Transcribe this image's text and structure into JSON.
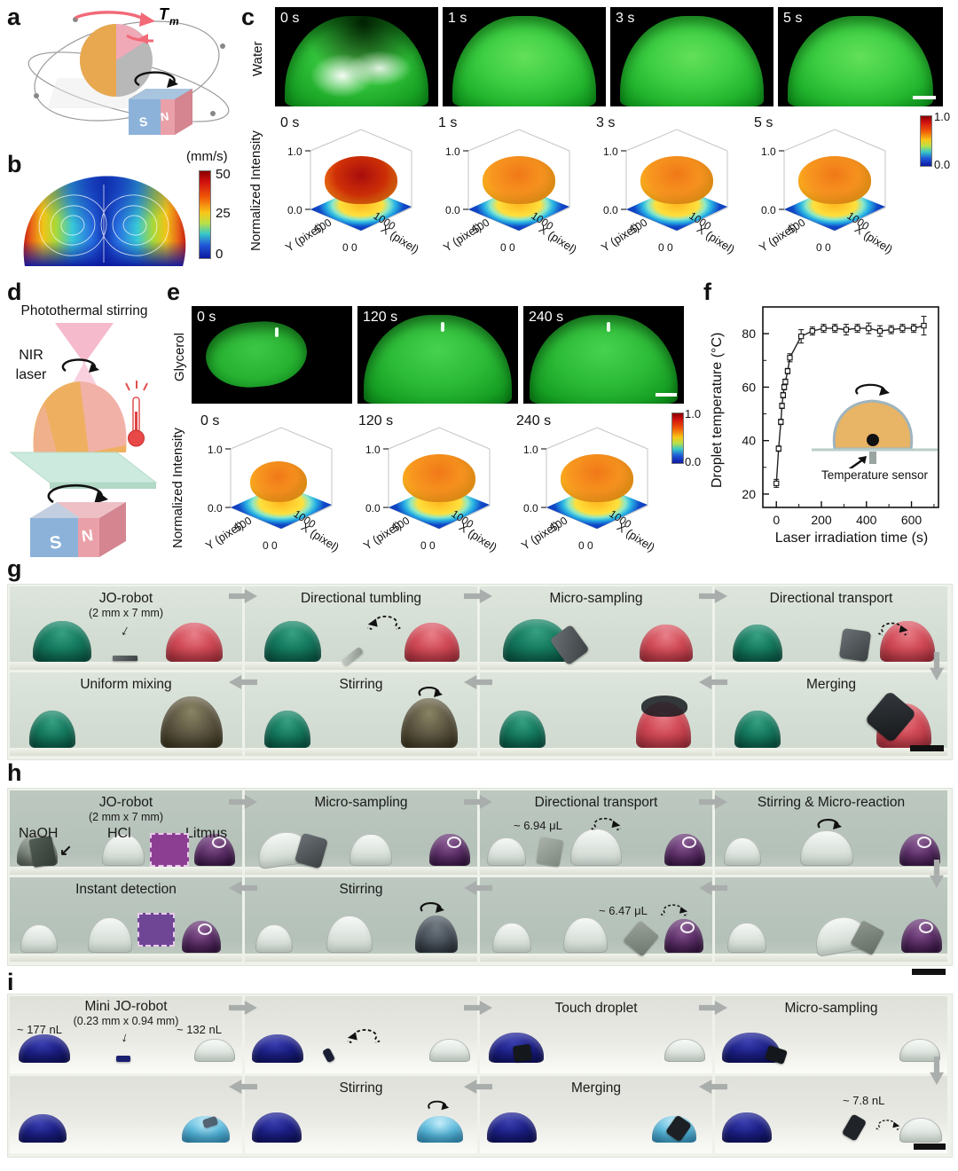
{
  "panels": {
    "a": {
      "label": "a",
      "torque_main": "T",
      "torque_sub": "m",
      "magnet_south": "S",
      "magnet_north": "N"
    },
    "b": {
      "label": "b",
      "colorbar_title": "(mm/s)",
      "colorbar_ticks": [
        "50",
        "25",
        "0"
      ]
    },
    "c": {
      "label": "c",
      "sample": "Water",
      "frame_times": [
        "0 s",
        "1 s",
        "3 s",
        "5 s"
      ],
      "plot_times": [
        "0 s",
        "1 s",
        "3 s",
        "5 s"
      ],
      "ylabel": "Normalized Intensity",
      "z_hi": "1.0",
      "z_lo": "0.0",
      "y_tick": "500",
      "origin_tick": "0 0",
      "x_tick": "1000",
      "y_axis": "Y (pixel)",
      "x_axis": "X (pixel)",
      "colorbar_hi": "1.0",
      "colorbar_lo": "0.0"
    },
    "d": {
      "label": "d",
      "title": "Photothermal stirring",
      "laser_label_1": "NIR",
      "laser_label_2": "laser",
      "magnet_south": "S",
      "magnet_north": "N"
    },
    "e": {
      "label": "e",
      "sample": "Glycerol",
      "frame_times": [
        "0 s",
        "120 s",
        "240 s"
      ],
      "plot_times": [
        "0 s",
        "120 s",
        "240 s"
      ],
      "ylabel": "Normalized Intensity",
      "z_hi": "1.0",
      "z_lo": "0.0",
      "y_tick": "500",
      "origin_tick": "0 0",
      "x_tick": "1000",
      "y_axis": "Y (pixel)",
      "x_axis": "X (pixel)",
      "colorbar_hi": "1.0",
      "colorbar_lo": "0.0"
    },
    "f": {
      "label": "f",
      "inset_label": "Temperature sensor"
    },
    "g": {
      "label": "g",
      "row1": [
        {
          "label": "JO-robot",
          "sublabel": "(2 mm x 7 mm)"
        },
        {
          "label": "Directional tumbling"
        },
        {
          "label": "Micro-sampling"
        },
        {
          "label": "Directional transport"
        }
      ],
      "row2": [
        {
          "label": "Uniform mixing"
        },
        {
          "label": "Stirring"
        },
        {
          "label": ""
        },
        {
          "label": "Merging"
        }
      ]
    },
    "h": {
      "label": "h",
      "row1": [
        {
          "label": "JO-robot",
          "sublabel": "(2 mm x 7 mm)",
          "chem": [
            "NaOH",
            "HCl",
            "Litmus"
          ]
        },
        {
          "label": "Micro-sampling"
        },
        {
          "label": "Directional transport",
          "annotation": "~ 6.94 μL"
        },
        {
          "label": "Stirring & Micro-reaction"
        }
      ],
      "row2": [
        {
          "label": "Instant detection"
        },
        {
          "label": "Stirring"
        },
        {
          "label": "",
          "annotation": "~ 6.47 μL"
        },
        {
          "label": ""
        }
      ]
    },
    "i": {
      "label": "i",
      "row1": [
        {
          "label": "Mini JO-robot",
          "sublabel": "(0.23 mm x 0.94 mm)",
          "left_volume": "~ 177 nL",
          "right_volume": "~ 132 nL"
        },
        {
          "label": ""
        },
        {
          "label": "Touch droplet"
        },
        {
          "label": "Micro-sampling"
        }
      ],
      "row2": [
        {
          "label": ""
        },
        {
          "label": "Stirring"
        },
        {
          "label": "Merging"
        },
        {
          "label": "",
          "annotation": "~ 7.8 nL"
        }
      ]
    }
  },
  "chart_data": [
    {
      "type": "line",
      "xlabel": "Laser irradiation time (s)",
      "ylabel": "Droplet temperature (°C)",
      "x": [
        0,
        10,
        20,
        25,
        30,
        35,
        40,
        50,
        60,
        110,
        160,
        210,
        260,
        310,
        360,
        410,
        460,
        510,
        560,
        610,
        655
      ],
      "y": [
        24,
        37,
        47,
        53,
        57,
        60,
        62,
        66,
        71,
        79,
        81,
        82,
        82,
        81.5,
        82,
        82,
        81,
        81.5,
        82,
        82,
        83
      ],
      "yerr": [
        1.5,
        1,
        1,
        1,
        1,
        1,
        1,
        1,
        1.5,
        2.5,
        1.5,
        1.5,
        1.5,
        2,
        1.5,
        2,
        2,
        1.5,
        1.5,
        1.5,
        3.5
      ],
      "xticks": [
        0,
        200,
        400,
        600
      ],
      "yticks": [
        20,
        40,
        60,
        80
      ],
      "xlim": [
        -60,
        720
      ],
      "ylim": [
        15,
        90
      ],
      "grid": false,
      "marker": "open-square",
      "legend": null
    },
    {
      "type": "heatmap",
      "role": "velocity-field",
      "legend_title": "(mm/s)",
      "range": [
        0,
        50
      ],
      "colorbar_ticks": [
        50,
        25,
        0
      ],
      "colormap": "jet"
    },
    {
      "type": "heatmap",
      "role": "normalized-intensity-water",
      "times_s": [
        0,
        1,
        3,
        5
      ],
      "z_range": [
        0.0,
        1.0
      ],
      "x_axis": "X (pixel)",
      "y_axis": "Y (pixel)",
      "x_tick": 1000,
      "y_tick": 500,
      "colormap": "jet"
    },
    {
      "type": "heatmap",
      "role": "normalized-intensity-glycerol",
      "times_s": [
        0,
        120,
        240
      ],
      "z_range": [
        0.0,
        1.0
      ],
      "x_axis": "X (pixel)",
      "y_axis": "Y (pixel)",
      "x_tick": 1000,
      "y_tick": 500,
      "colormap": "jet"
    }
  ],
  "colors": {
    "jet_high": "#c81010",
    "jet_low": "#0c18a0",
    "photo_droplet_green": "#2db832",
    "droplet_green": "#157a5f",
    "droplet_red": "#c84652",
    "droplet_olive": "#4e4734",
    "droplet_purple": "#47215c",
    "droplet_navy": "#191c7a",
    "droplet_lightblue": "#4fb2da",
    "robot_gray": "#45494d",
    "flow_arrow": "#a9aeac",
    "magnet_blue": "#8cb2da",
    "magnet_pink": "#eaa0a8",
    "laser_pink": "#f6b6ca",
    "torque_arrow_red": "#f26a78"
  },
  "icons": {
    "flow-arrow": "thick gray arrow",
    "rotation-arrow": "solid curved arc",
    "dashed-rotation-arrow": "dashed curved arc",
    "pointer-arrow": "↙",
    "down-arrow": "↓"
  }
}
